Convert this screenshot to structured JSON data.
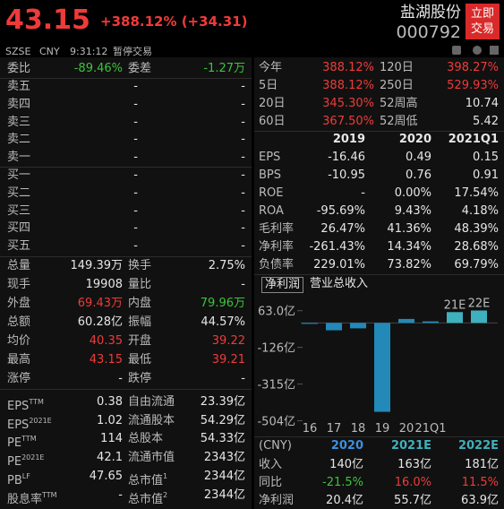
{
  "header": {
    "price": "43.15",
    "change": "+388.12% (+34.31)",
    "name": "盐湖股份",
    "code": "000792",
    "button": [
      "立即",
      "交易"
    ],
    "exchange": "SZSE",
    "currency": "CNY",
    "time": "9:31:12",
    "status": "暂停交易"
  },
  "order_book": {
    "ratio_label": "委比",
    "ratio": "-89.46%",
    "diff_label": "委差",
    "diff": "-1.27万",
    "asks": [
      [
        "卖五",
        "-",
        "-"
      ],
      [
        "卖四",
        "-",
        "-"
      ],
      [
        "卖三",
        "-",
        "-"
      ],
      [
        "卖二",
        "-",
        "-"
      ],
      [
        "卖一",
        "-",
        "-"
      ]
    ],
    "bids": [
      [
        "买一",
        "-",
        "-"
      ],
      [
        "买二",
        "-",
        "-"
      ],
      [
        "买三",
        "-",
        "-"
      ],
      [
        "买四",
        "-",
        "-"
      ],
      [
        "买五",
        "-",
        "-"
      ]
    ]
  },
  "stats": [
    [
      "总量",
      "149.39万",
      "换手",
      "2.75%"
    ],
    [
      "现手",
      "19908",
      "量比",
      "-"
    ],
    [
      "外盘",
      "69.43万",
      "内盘",
      "79.96万"
    ],
    [
      "总额",
      "60.28亿",
      "振幅",
      "44.57%"
    ],
    [
      "均价",
      "40.35",
      "开盘",
      "39.22"
    ],
    [
      "最高",
      "43.15",
      "最低",
      "39.21"
    ],
    [
      "涨停",
      "-",
      "跌停",
      "-"
    ]
  ],
  "valuation": [
    [
      {
        "base": "EPS",
        "sup": "TTM"
      },
      "0.38",
      {
        "base": "自由流通"
      },
      "23.39亿"
    ],
    [
      {
        "base": "EPS",
        "sup": "2021E"
      },
      "1.02",
      {
        "base": "流通股本"
      },
      "54.29亿"
    ],
    [
      {
        "base": "PE",
        "sup": "TTM"
      },
      "114",
      {
        "base": "总股本"
      },
      "54.33亿"
    ],
    [
      {
        "base": "PE",
        "sup": "2021E"
      },
      "42.1",
      {
        "base": "流通市值"
      },
      "2343亿"
    ],
    [
      {
        "base": "PB",
        "sup": "LF"
      },
      "47.65",
      {
        "base": "总市值",
        "sup": "1"
      },
      "2344亿"
    ],
    [
      {
        "base": "股息率",
        "sup": "TTM"
      },
      "-",
      {
        "base": "总市值",
        "sup": "2"
      },
      "2344亿"
    ]
  ],
  "returns": [
    [
      "今年",
      "388.12%",
      "120日",
      "398.27%"
    ],
    [
      "5日",
      "388.12%",
      "250日",
      "529.93%"
    ],
    [
      "20日",
      "345.30%",
      "52周高",
      "10.74"
    ],
    [
      "60日",
      "367.50%",
      "52周低",
      "5.42"
    ]
  ],
  "financials": {
    "columns": [
      "2019",
      "2020",
      "2021Q1"
    ],
    "rows": [
      [
        "EPS",
        "-16.46",
        "0.49",
        "0.15"
      ],
      [
        "BPS",
        "-10.95",
        "0.76",
        "0.91"
      ],
      [
        "ROE",
        "-",
        "0.00%",
        "17.54%"
      ],
      [
        "ROA",
        "-95.69%",
        "9.43%",
        "4.18%"
      ],
      [
        "毛利率",
        "26.47%",
        "41.36%",
        "48.39%"
      ],
      [
        "净利率",
        "-261.43%",
        "14.34%",
        "28.68%"
      ],
      [
        "负债率",
        "229.01%",
        "73.82%",
        "69.79%"
      ]
    ]
  },
  "tabs": [
    "净利润",
    "营业总收入"
  ],
  "earnings_chart": {
    "type": "bar",
    "categories": [
      "16",
      "17",
      "18",
      "19",
      "20",
      "21Q1",
      "21E",
      "22E"
    ],
    "values": [
      -5,
      -38,
      -28,
      -458,
      20.4,
      8,
      55.7,
      63.9
    ],
    "colors": [
      "#2389b8",
      "#2389b8",
      "#2389b8",
      "#2389b8",
      "#2389b8",
      "#2389b8",
      "#3fb0bd",
      "#3fb0bd"
    ],
    "ylim": [
      -520,
      80
    ],
    "yticks": [
      {
        "value": 63,
        "label": "63.0亿"
      },
      {
        "value": -126,
        "label": "-126亿"
      },
      {
        "value": -315,
        "label": "-315亿"
      },
      {
        "value": -504,
        "label": "-504亿"
      }
    ]
  },
  "forecast": {
    "columns": [
      "(CNY)",
      "2020",
      "2021E",
      "2022E"
    ],
    "rows": [
      [
        "收入",
        "140亿",
        "163亿",
        "181亿"
      ],
      [
        "同比",
        "-21.5%",
        "16.0%",
        "11.5%"
      ],
      [
        "净利润",
        "20.4亿",
        "55.7亿",
        "63.9亿"
      ]
    ]
  }
}
